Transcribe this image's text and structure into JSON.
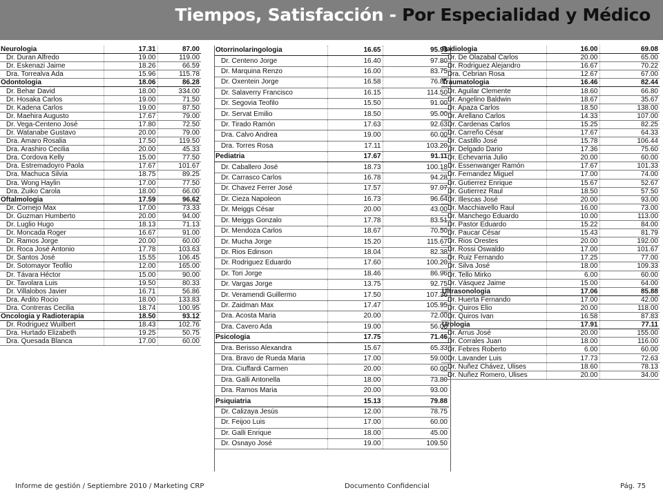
{
  "header": {
    "title_part1": "Tiempos, Satisfacción - ",
    "title_part2": "Por Especialidad y Médico"
  },
  "footer": {
    "left": "Informe de gestión / Septiembre 2010 / Marketing CRP",
    "center": "Documento Confidencial",
    "right": "Pág. 75"
  },
  "columns": [
    {
      "groups": [
        {
          "name": "Neurologia",
          "t": "17.31",
          "s": "87.00",
          "rows": [
            [
              "Dr. Duran Alfredo",
              "19.00",
              "119.00"
            ],
            [
              "Dr. Eskenazi Jaime",
              "18.26",
              "66.59"
            ],
            [
              "Dra. Torrealva Ada",
              "15.96",
              "115.78"
            ]
          ]
        },
        {
          "name": "Odontologia",
          "t": "18.06",
          "s": "86.28",
          "rows": [
            [
              "Dr. Behar David",
              "18.00",
              "334.00"
            ],
            [
              "Dr. Hosaka Carlos",
              "19.00",
              "71.50"
            ],
            [
              "Dr. Kadena Carlos",
              "19.00",
              "87.50"
            ],
            [
              "Dr. Maehira Augusto",
              "17.67",
              "79.00"
            ],
            [
              "Dr. Vega-Centeno José",
              "17.80",
              "72.50"
            ],
            [
              "Dr. Watanabe Gustavo",
              "20.00",
              "79.00"
            ],
            [
              "Dra. Amaro Rosalia",
              "17.50",
              "119.50"
            ],
            [
              "Dra. Arashiro Cecilia",
              "20.00",
              "45.33"
            ],
            [
              "Dra. Cordova Kelly",
              "15.00",
              "77.50"
            ],
            [
              "Dra. Estremadoyro Paola",
              "17.67",
              "101.67"
            ],
            [
              "Dra. Machuca Silvia",
              "18.75",
              "89.25"
            ],
            [
              "Dra. Wong Haylin",
              "17.00",
              "77.50"
            ],
            [
              "Dra. Zuiko Carola",
              "18.00",
              "66.00"
            ]
          ]
        },
        {
          "name": "Oftalmologia",
          "t": "17.59",
          "s": "96.62",
          "rows": [
            [
              "Dr. Cornejo Max",
              "17.00",
              "73.33"
            ],
            [
              "Dr. Guzman Humberto",
              "20.00",
              "94.00"
            ],
            [
              "Dr. Luglio Hugo",
              "18.13",
              "71.13"
            ],
            [
              "Dr. Moncada Roger",
              "16.67",
              "91.00"
            ],
            [
              "Dr. Ramos Jorge",
              "20.00",
              "60.00"
            ],
            [
              "Dr. Roca José Antonio",
              "17.78",
              "103.63"
            ],
            [
              "Dr. Santos José",
              "15.55",
              "106.45"
            ],
            [
              "Dr. Sotomayor Teofilo",
              "12.00",
              "165.00"
            ],
            [
              "Dr. Távara Héctor",
              "15.00",
              "90.00"
            ],
            [
              "Dr. Tavolara Luis",
              "19.50",
              "80.33"
            ],
            [
              "Dr. Villalobos Javier",
              "16.71",
              "56.86"
            ],
            [
              "Dra. Ardito Rocio",
              "18.00",
              "133.83"
            ],
            [
              "Dra. Contreras Cecilia",
              "18.74",
              "100.95"
            ]
          ]
        },
        {
          "name": "Oncologia y Radioterapia",
          "t": "18.50",
          "s": "93.12",
          "rows": [
            [
              "Dr. Rodriguez Wuilbert",
              "18.43",
              "102.76"
            ],
            [
              "Dra. Hurtado Elizabeth",
              "19.25",
              "50.75"
            ],
            [
              "Dra. Quesada Blanca",
              "17.00",
              "60.00"
            ]
          ]
        }
      ]
    },
    {
      "groups": [
        {
          "name": "Otorrinolaringologia",
          "t": "16.65",
          "s": "95.93",
          "rows": [
            [
              "Dr. Centeno Jorge",
              "16.40",
              "97.80"
            ],
            [
              "Dr. Marquina Renzo",
              "16.00",
              "83.75"
            ],
            [
              "Dr. Oxentein Jorge",
              "16.58",
              "76.85"
            ],
            [
              "Dr. Salaverry Francisco",
              "16.15",
              "114.50"
            ],
            [
              "Dr. Segovia Teofilo",
              "15.50",
              "91.00"
            ],
            [
              "Dr. Servat Emilio",
              "18.50",
              "95.00"
            ],
            [
              "Dr. Tirado Ramón",
              "17.63",
              "92.63"
            ],
            [
              "Dra. Calvo Andrea",
              "19.00",
              "60.00"
            ],
            [
              "Dra. Torres Rosa",
              "17.11",
              "103.20"
            ]
          ]
        },
        {
          "name": "Pediatria",
          "t": "17.67",
          "s": "91.11",
          "rows": [
            [
              "Dr. Caballero José",
              "18.73",
              "100.18"
            ],
            [
              "Dr. Carrasco Carlos",
              "16.78",
              "94.28"
            ],
            [
              "Dr. Chavez Ferrer José",
              "17.57",
              "97.07"
            ],
            [
              "Dr. Cieza Napoleon",
              "16.73",
              "96.64"
            ],
            [
              "Dr. Meiggs César",
              "20.00",
              "43.00"
            ],
            [
              "Dr. Meiggs Gonzalo",
              "17.78",
              "83.51"
            ],
            [
              "Dr. Mendoza Carlos",
              "18.67",
              "70.50"
            ],
            [
              "Dr. Mucha Jorge",
              "15.20",
              "115.67"
            ],
            [
              "Dr. Rios Edinson",
              "18.04",
              "82.38"
            ],
            [
              "Dr. Rodriguez Eduardo",
              "17.60",
              "100.20"
            ],
            [
              "Dr. Tori Jorge",
              "18.46",
              "86.96"
            ],
            [
              "Dr. Vargas Jorge",
              "13.75",
              "92.75"
            ],
            [
              "Dr. Veramendi Guillermo",
              "17.50",
              "107.36"
            ],
            [
              "Dr. Zaidman Max",
              "17.47",
              "105.95"
            ],
            [
              "Dra. Acosta Maria",
              "20.00",
              "72.00"
            ],
            [
              "Dra. Cavero Ada",
              "19.00",
              "56.00"
            ]
          ]
        },
        {
          "name": "Psicologia",
          "t": "17.75",
          "s": "71.46",
          "rows": [
            [
              "Dra. Berisso Alexandra",
              "15.67",
              "65.33"
            ],
            [
              "Dra. Bravo de Rueda Maria",
              "17.00",
              "59.00"
            ],
            [
              "Dra. Ciuffardi Carmen",
              "20.00",
              "60.00"
            ],
            [
              "Dra. Galli Antonella",
              "18.00",
              "73.80"
            ],
            [
              "Dra. Ramos Maria",
              "20.00",
              "93.00"
            ]
          ]
        },
        {
          "name": "Psiquiatria",
          "t": "15.13",
          "s": "79.88",
          "rows": [
            [
              "Dr. Calizaya Jesús",
              "12.00",
              "78.75"
            ],
            [
              "Dr. Feijoo Luis",
              "17.00",
              "60.00"
            ],
            [
              "Dr. Galli Enrique",
              "18.00",
              "45.00"
            ],
            [
              "Dr. Osnayo José",
              "19.00",
              "109.50"
            ]
          ]
        }
      ]
    },
    {
      "groups": [
        {
          "name": "Radiologia",
          "t": "16.00",
          "s": "69.08",
          "rows": [
            [
              "Dr. De Olazabal Carlos",
              "20.00",
              "65.00"
            ],
            [
              "Dr. Rodriguez Alejandro",
              "16.67",
              "70.22"
            ],
            [
              "Dra. Cebrian Rosa",
              "12.67",
              "67.00"
            ]
          ]
        },
        {
          "name": "Traumatologia",
          "t": "16.46",
          "s": "82.44",
          "rows": [
            [
              "Dr. Aguilar Clemente",
              "18.60",
              "66.80"
            ],
            [
              "Dr. Angelino Baldwin",
              "18.67",
              "35.67"
            ],
            [
              "Dr. Apaza Carlos",
              "18.50",
              "138.00"
            ],
            [
              "Dr. Arellano Carlos",
              "14.33",
              "107.00"
            ],
            [
              "Dr. Cardenas Carlos",
              "15.25",
              "82.25"
            ],
            [
              "Dr. Carreño César",
              "17.67",
              "64.33"
            ],
            [
              "Dr. Castillo José",
              "15.78",
              "106.44"
            ],
            [
              "Dr. Delgado Dario",
              "17.36",
              "75.60"
            ],
            [
              "Dr. Echevarria Julio",
              "20.00",
              "60.00"
            ],
            [
              "Dr. Essenwanger Ramón",
              "17.67",
              "101.33"
            ],
            [
              "Dr. Fernandez Miguel",
              "17.00",
              "74.00"
            ],
            [
              "Dr. Gutierrez Enrique",
              "15.67",
              "52.67"
            ],
            [
              "Dr. Gutierrez Raul",
              "18.50",
              "57.50"
            ],
            [
              "Dr. Illescas José",
              "20.00",
              "93.00"
            ],
            [
              "Dr. Macchiavello Raul",
              "16.00",
              "73.00"
            ],
            [
              "Dr. Manchego Eduardo",
              "10.00",
              "113.00"
            ],
            [
              "Dr. Pastor Eduardo",
              "15.22",
              "84.00"
            ],
            [
              "Dr. Paucar César",
              "15.43",
              "81.79"
            ],
            [
              "Dr. Rios Orestes",
              "20.00",
              "192.00"
            ],
            [
              "Dr. Rossi Oswaldo",
              "17.00",
              "101.67"
            ],
            [
              "Dr. Ruiz Fernando",
              "17.25",
              "77.00"
            ],
            [
              "Dr. Silva José",
              "18.00",
              "109.33"
            ],
            [
              "Dr. Tello Mirko",
              "6.00",
              "60.00"
            ],
            [
              "Dr. Vásquez Jaime",
              "15.00",
              "64.00"
            ]
          ]
        },
        {
          "name": "Ultrasonologia",
          "t": "17.06",
          "s": "85.88",
          "rows": [
            [
              "Dr. Huerta Fernando",
              "17.00",
              "42.00"
            ],
            [
              "Dr. Quiros Elio",
              "20.00",
              "118.00"
            ],
            [
              "Dr. Quiros Ivan",
              "16.58",
              "87.83"
            ]
          ]
        },
        {
          "name": "Urologia",
          "t": "17.91",
          "s": "77.11",
          "rows": [
            [
              "Dr. Arrus José",
              "20.00",
              "155.00"
            ],
            [
              "Dr. Corrales Juan",
              "18.00",
              "116.00"
            ],
            [
              "Dr. Febres Roberto",
              "6.00",
              "60.00"
            ],
            [
              "Dr. Lavander Luis",
              "17.73",
              "72.63"
            ],
            [
              "Dr. Nuñez Chávez, Ulises",
              "18.60",
              "78.13"
            ],
            [
              "Dr. Nuñez Romero, Ulises",
              "20.00",
              "34.00"
            ]
          ]
        }
      ]
    }
  ]
}
